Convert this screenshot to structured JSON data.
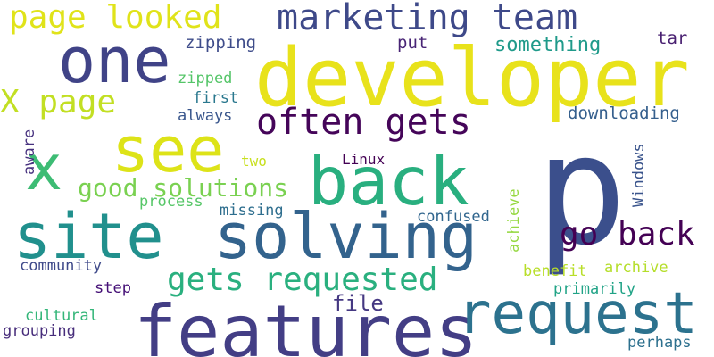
{
  "words": [
    {
      "id": "w-p",
      "text": "p",
      "color": "#3b4f8c"
    },
    {
      "id": "w-developer",
      "text": "developer",
      "color": "#e8e21b"
    },
    {
      "id": "w-one",
      "text": "one",
      "color": "#404387"
    },
    {
      "id": "w-features",
      "text": "features",
      "color": "#433e85"
    },
    {
      "id": "w-request",
      "text": "request",
      "color": "#2c728e"
    },
    {
      "id": "w-solving",
      "text": "solving",
      "color": "#33638d"
    },
    {
      "id": "w-site",
      "text": "site",
      "color": "#21908d"
    },
    {
      "id": "w-back",
      "text": "back",
      "color": "#29af7f"
    },
    {
      "id": "w-x",
      "text": "x",
      "color": "#3dbc74"
    },
    {
      "id": "w-see",
      "text": "see",
      "color": "#dde318"
    },
    {
      "id": "w-marketing-team",
      "text": "marketing team",
      "color": "#3e4989"
    },
    {
      "id": "w-page-looked",
      "text": "page looked",
      "color": "#e0e31a"
    },
    {
      "id": "w-often-gets",
      "text": "often gets",
      "color": "#450559"
    },
    {
      "id": "w-x-page",
      "text": "X page",
      "color": "#c2df23"
    },
    {
      "id": "w-gets-requested",
      "text": "gets requested",
      "color": "#2ab07f"
    },
    {
      "id": "w-go-back",
      "text": "go back",
      "color": "#440154"
    },
    {
      "id": "w-good-solutions",
      "text": "good solutions",
      "color": "#7ad151"
    },
    {
      "id": "w-file",
      "text": "file",
      "color": "#453882"
    },
    {
      "id": "w-something",
      "text": "something",
      "color": "#1f9a8a"
    },
    {
      "id": "w-zipping",
      "text": "zipping",
      "color": "#3e4c8a"
    },
    {
      "id": "w-put",
      "text": "put",
      "color": "#482475"
    },
    {
      "id": "w-tar",
      "text": "tar",
      "color": "#481f70"
    },
    {
      "id": "w-zipped",
      "text": "zipped",
      "color": "#54c568"
    },
    {
      "id": "w-first",
      "text": "first",
      "color": "#2a788e"
    },
    {
      "id": "w-always",
      "text": "always",
      "color": "#39568c"
    },
    {
      "id": "w-downloading",
      "text": "downloading",
      "color": "#355f8d"
    },
    {
      "id": "w-aware",
      "text": "aware",
      "color": "#46307e"
    },
    {
      "id": "w-two",
      "text": "two",
      "color": "#c8e020"
    },
    {
      "id": "w-linux",
      "text": "Linux",
      "color": "#440154"
    },
    {
      "id": "w-windows",
      "text": "Windows",
      "color": "#3a548c"
    },
    {
      "id": "w-process",
      "text": "process",
      "color": "#56c667"
    },
    {
      "id": "w-missing",
      "text": "missing",
      "color": "#2e6e8e"
    },
    {
      "id": "w-confused",
      "text": "confused",
      "color": "#31668e"
    },
    {
      "id": "w-achieve",
      "text": "achieve",
      "color": "#95d840"
    },
    {
      "id": "w-community",
      "text": "community",
      "color": "#3f4a8a"
    },
    {
      "id": "w-benefit",
      "text": "benefit",
      "color": "#b8de29"
    },
    {
      "id": "w-archive",
      "text": "archive",
      "color": "#b5de2b"
    },
    {
      "id": "w-step",
      "text": "step",
      "color": "#440f76"
    },
    {
      "id": "w-primarily",
      "text": "primarily",
      "color": "#20a386"
    },
    {
      "id": "w-cultural",
      "text": "cultural",
      "color": "#34b679"
    },
    {
      "id": "w-grouping",
      "text": "grouping",
      "color": "#472d7b"
    },
    {
      "id": "w-perhaps",
      "text": "perhaps",
      "color": "#2d708e"
    }
  ]
}
